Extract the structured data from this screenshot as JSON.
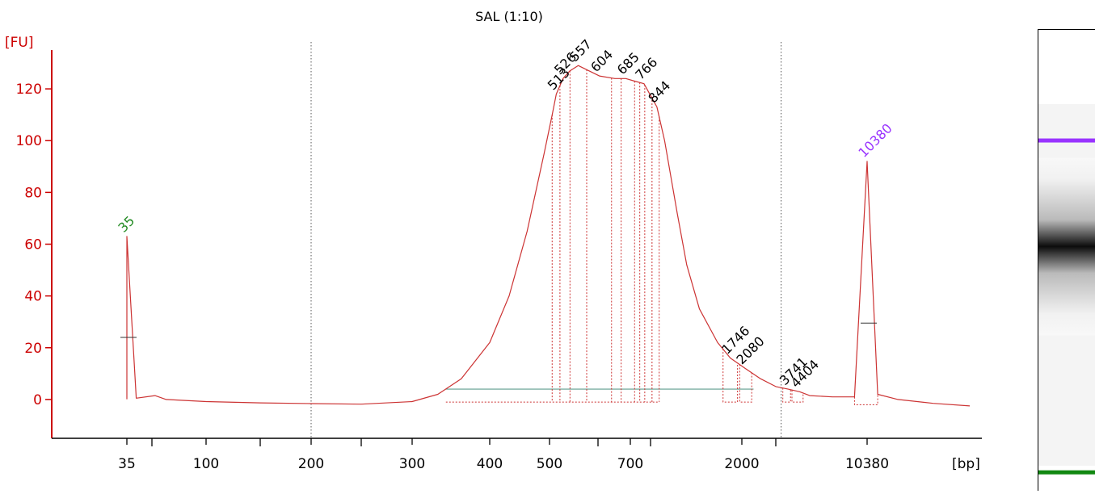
{
  "chart_data": {
    "type": "line",
    "title": "SAL (1:10)",
    "ylabel": "[FU]",
    "xlabel": "[bp]",
    "ylim": [
      -15,
      135
    ],
    "yticks": [
      0,
      20,
      40,
      60,
      80,
      100,
      120
    ],
    "xtick_labels": [
      "35",
      "100",
      "200",
      "300",
      "400",
      "500",
      "700",
      "2000",
      "10380"
    ],
    "x_scale": "migration (ladder-calibrated, non-linear)",
    "series": [
      {
        "color": "#cc3333",
        "points": [
          [
            35,
            0.1
          ],
          [
            35,
            63
          ],
          [
            40,
            0.5
          ],
          [
            52,
            1.5
          ],
          [
            60,
            0
          ],
          [
            100,
            -0.8
          ],
          [
            150,
            -1.3
          ],
          [
            200,
            -1.6
          ],
          [
            250,
            -1.8
          ],
          [
            300,
            -0.8
          ],
          [
            330,
            2
          ],
          [
            360,
            8
          ],
          [
            400,
            22
          ],
          [
            430,
            40
          ],
          [
            460,
            65
          ],
          [
            490,
            95
          ],
          [
            505,
            110
          ],
          [
            513,
            118
          ],
          [
            526,
            124
          ],
          [
            540,
            127
          ],
          [
            557,
            129
          ],
          [
            604,
            125
          ],
          [
            650,
            124
          ],
          [
            685,
            124
          ],
          [
            720,
            123
          ],
          [
            766,
            122
          ],
          [
            844,
            113
          ],
          [
            900,
            100
          ],
          [
            1000,
            72
          ],
          [
            1100,
            52
          ],
          [
            1250,
            35
          ],
          [
            1500,
            22
          ],
          [
            1746,
            16
          ],
          [
            2080,
            12
          ],
          [
            2500,
            8
          ],
          [
            3000,
            5
          ],
          [
            3741,
            4
          ],
          [
            4404,
            3
          ],
          [
            5000,
            1.5
          ],
          [
            7000,
            1
          ],
          [
            9000,
            1
          ],
          [
            10380,
            92
          ],
          [
            11500,
            2
          ],
          [
            14000,
            0
          ],
          [
            17000,
            -1.5
          ],
          [
            20000,
            -2.5
          ]
        ]
      }
    ],
    "peaks": [
      {
        "label": "35",
        "x": 35,
        "y": 63,
        "color": "#228b22"
      },
      {
        "label": "513",
        "x": 513,
        "y": 118,
        "color": "#000000"
      },
      {
        "label": "526",
        "x": 526,
        "y": 124,
        "color": "#000000"
      },
      {
        "label": "557",
        "x": 557,
        "y": 129,
        "color": "#000000"
      },
      {
        "label": "604",
        "x": 604,
        "y": 125,
        "color": "#000000"
      },
      {
        "label": "685",
        "x": 685,
        "y": 124,
        "color": "#000000"
      },
      {
        "label": "766",
        "x": 766,
        "y": 122,
        "color": "#000000"
      },
      {
        "label": "844",
        "x": 844,
        "y": 113,
        "color": "#000000"
      },
      {
        "label": "1746",
        "x": 1746,
        "y": 16,
        "color": "#000000"
      },
      {
        "label": "2080",
        "x": 2080,
        "y": 12,
        "color": "#000000"
      },
      {
        "label": "3741",
        "x": 3741,
        "y": 4,
        "color": "#000000"
      },
      {
        "label": "4404",
        "x": 4404,
        "y": 3,
        "color": "#000000"
      },
      {
        "label": "10380",
        "x": 10380,
        "y": 92,
        "color": "#9933ff"
      }
    ],
    "marker_half_heights": [
      {
        "x": 35,
        "y": 24
      },
      {
        "x": 10380,
        "y": 29.5
      }
    ],
    "baseline": {
      "from": 340,
      "to": 2300,
      "y": 4,
      "color": "#5f9e8f"
    },
    "dotted_reference_lines": [
      200,
      3300
    ],
    "grid": false,
    "gel": {
      "lanes": [
        {
          "position": 0.24,
          "color": "#9933ff"
        },
        {
          "position": 0.47,
          "color": "#000000",
          "kind": "smear"
        },
        {
          "position": 0.96,
          "color": "#118811"
        }
      ]
    }
  }
}
